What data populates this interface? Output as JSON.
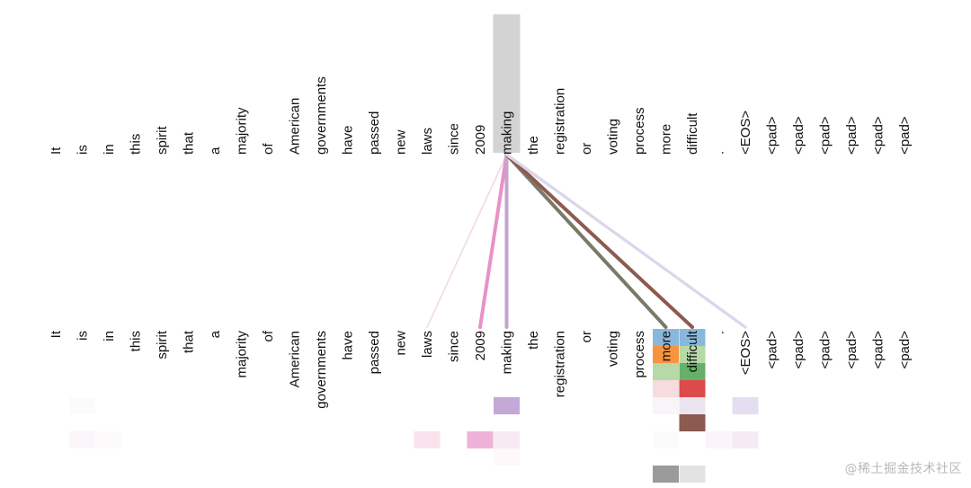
{
  "tokens": [
    "It",
    "is",
    "in",
    "this",
    "spirit",
    "that",
    "a",
    "majority",
    "of",
    "American",
    "governments",
    "have",
    "passed",
    "new",
    "laws",
    "since",
    "2009",
    "making",
    "the",
    "registration",
    "or",
    "voting",
    "process",
    "more",
    "difficult",
    ".",
    "<EOS>",
    "<pad>",
    "<pad>",
    "<pad>",
    "<pad>",
    "<pad>",
    "<pad>"
  ],
  "selected_token_index": 17,
  "attention_edges": [
    {
      "to": 14,
      "color": "#f2dbe8",
      "weight": 0.35
    },
    {
      "to": 16,
      "color": "#e991c6",
      "weight": 1.0
    },
    {
      "to": 17,
      "color": "#c3a5cf",
      "weight": 1.0
    },
    {
      "to": 23,
      "color": "#7a7a6a",
      "weight": 1.0
    },
    {
      "to": 24,
      "color": "#8c5a4f",
      "weight": 1.0
    },
    {
      "to": 26,
      "color": "#ddd6ea",
      "weight": 0.8
    }
  ],
  "head_cells": [
    {
      "token": 23,
      "row": 0,
      "color": "#8ab8dd"
    },
    {
      "token": 24,
      "row": 0,
      "color": "#8ab8dd"
    },
    {
      "token": 23,
      "row": 1,
      "color": "#f7953f"
    },
    {
      "token": 24,
      "row": 1,
      "color": "#b7d8a7"
    },
    {
      "token": 23,
      "row": 2,
      "color": "#b7d8a7"
    },
    {
      "token": 24,
      "row": 2,
      "color": "#66b06a"
    },
    {
      "token": 23,
      "row": 3,
      "color": "#f6dcdc"
    },
    {
      "token": 24,
      "row": 3,
      "color": "#dc4a4a"
    },
    {
      "token": 17,
      "row": 4,
      "color": "#c3a8d8"
    },
    {
      "token": 24,
      "row": 4,
      "color": "#ece3f1"
    },
    {
      "token": 26,
      "row": 4,
      "color": "#e3def2"
    },
    {
      "token": 1,
      "row": 4,
      "color": "#fbfbfb"
    },
    {
      "token": 23,
      "row": 4,
      "color": "#f8f5f8"
    },
    {
      "token": 24,
      "row": 5,
      "color": "#8b5a50"
    },
    {
      "token": 1,
      "row": 6,
      "color": "#fbf6f9"
    },
    {
      "token": 2,
      "row": 6,
      "color": "#fcfafb"
    },
    {
      "token": 14,
      "row": 6,
      "color": "#f8e3ec"
    },
    {
      "token": 16,
      "row": 6,
      "color": "#efb2d9"
    },
    {
      "token": 17,
      "row": 6,
      "color": "#f8eaf2"
    },
    {
      "token": 25,
      "row": 6,
      "color": "#fbf4f8"
    },
    {
      "token": 26,
      "row": 6,
      "color": "#f6eaf4"
    },
    {
      "token": 23,
      "row": 6,
      "color": "#fbfbfb"
    },
    {
      "token": 17,
      "row": 7,
      "color": "#fdf9fb"
    },
    {
      "token": 23,
      "row": 8,
      "color": "#9b9b9b"
    },
    {
      "token": 24,
      "row": 8,
      "color": "#e3e3e3"
    }
  ],
  "highlight_color": "#d3d3d3",
  "watermark": "@稀土掘金技术社区"
}
